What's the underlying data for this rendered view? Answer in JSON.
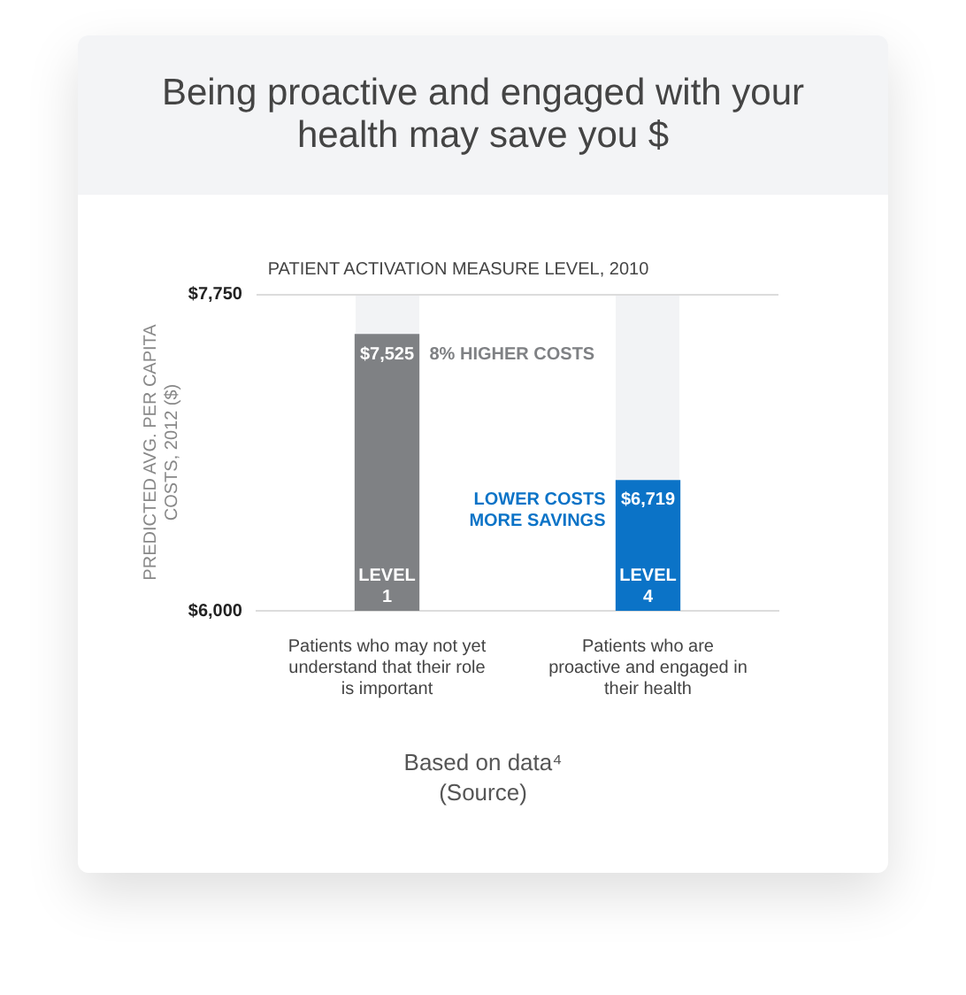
{
  "chart_data": {
    "type": "bar",
    "title": "Being proactive and engaged with your health may save you $",
    "subtitle": "PATIENT ACTIVATION MEASURE LEVEL, 2010",
    "ylabel": "PREDICTED AVG. PER CAPITA COSTS, 2012 ($)",
    "categories": [
      "Patients who may not yet understand that their role is important",
      "Patients who are proactive and engaged in their health"
    ],
    "values": [
      7525,
      6719
    ],
    "colors": [
      "#7f8184",
      "#0b73c7"
    ],
    "value_labels": [
      "$7,525",
      "$6,719"
    ],
    "ylim": [
      6000,
      7750
    ],
    "yticks": [
      {
        "value": 6000,
        "label": "$6,000"
      },
      {
        "value": 7750,
        "label": "$7,750"
      }
    ],
    "grid": false,
    "annotations": [
      {
        "text": "8% HIGHER COSTS",
        "x": "Patients who may not yet understand that their role is important",
        "y": 7525
      },
      {
        "text": "LOWER COSTS\nMORE SAVINGS",
        "x": "Patients who are proactive and engaged in their health",
        "y": 6719
      },
      {
        "text": "LEVEL\n1",
        "x": "Patients who may not yet understand that their role is important",
        "y": 6000
      },
      {
        "text": "LEVEL\n4",
        "x": "Patients who are proactive and engaged in their health",
        "y": 6000
      },
      "Based on data⁴",
      "(Source)"
    ]
  }
}
